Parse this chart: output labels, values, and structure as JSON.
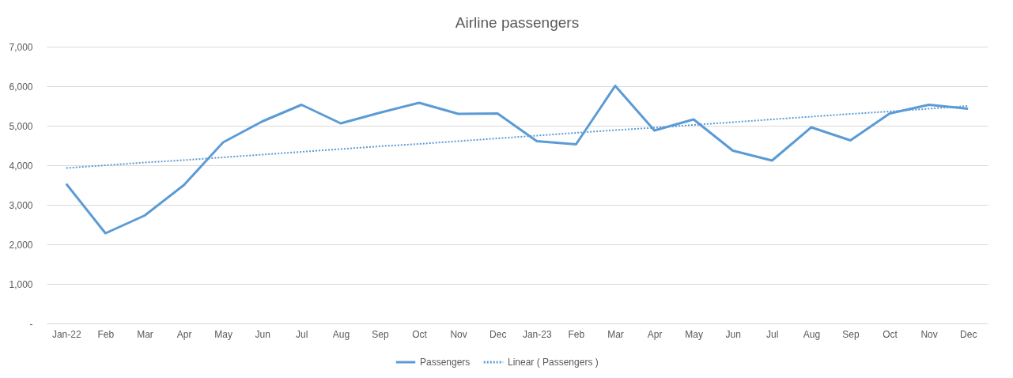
{
  "chart_data": {
    "type": "line",
    "title": "Airline passengers",
    "categories": [
      "Jan-22",
      "Feb",
      "Mar",
      "Apr",
      "May",
      "Jun",
      "Jul",
      "Aug",
      "Sep",
      "Oct",
      "Nov",
      "Dec",
      "Jan-23",
      "Feb",
      "Mar",
      "Apr",
      "May",
      "Jun",
      "Jul",
      "Aug",
      "Sep",
      "Oct",
      "Nov",
      "Dec"
    ],
    "series": [
      {
        "name": "Passengers",
        "color": "#5b9bd5",
        "line_style": "solid",
        "values": [
          3530,
          2280,
          2730,
          3500,
          4580,
          5110,
          5530,
          5060,
          5330,
          5580,
          5300,
          5310,
          4610,
          4530,
          6010,
          4880,
          5160,
          4370,
          4120,
          4960,
          4630,
          5310,
          5530,
          5430
        ]
      },
      {
        "name": "Linear ( Passengers )",
        "color": "#5b9bd5",
        "line_style": "dotted",
        "values": [
          3930,
          4000,
          4070,
          4130,
          4200,
          4270,
          4340,
          4410,
          4480,
          4540,
          4610,
          4680,
          4750,
          4820,
          4890,
          4950,
          5020,
          5090,
          5160,
          5230,
          5300,
          5360,
          5430,
          5500
        ]
      }
    ],
    "ylim": [
      0,
      7000
    ],
    "yticks": [
      {
        "value": 0,
        "label": "-"
      },
      {
        "value": 1000,
        "label": "1,000"
      },
      {
        "value": 2000,
        "label": "2,000"
      },
      {
        "value": 3000,
        "label": "3,000"
      },
      {
        "value": 4000,
        "label": "4,000"
      },
      {
        "value": 5000,
        "label": "5,000"
      },
      {
        "value": 6000,
        "label": "6,000"
      },
      {
        "value": 7000,
        "label": "7,000"
      }
    ],
    "grid": "y",
    "legend": "bottom",
    "marker": "none"
  }
}
